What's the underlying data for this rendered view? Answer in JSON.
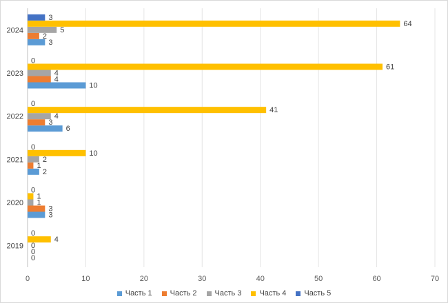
{
  "chart_data": {
    "type": "bar",
    "orientation": "horizontal",
    "categories": [
      "2019",
      "2020",
      "2021",
      "2022",
      "2023",
      "2024"
    ],
    "series": [
      {
        "name": "Часть 1",
        "color": "#5b9bd5",
        "values": [
          0,
          3,
          2,
          6,
          10,
          3
        ]
      },
      {
        "name": "Часть 2",
        "color": "#ed7d31",
        "values": [
          0,
          3,
          1,
          3,
          4,
          2
        ]
      },
      {
        "name": "Часть 3",
        "color": "#a5a5a5",
        "values": [
          0,
          1,
          2,
          4,
          4,
          5
        ]
      },
      {
        "name": "Часть 4",
        "color": "#ffc000",
        "values": [
          4,
          1,
          10,
          41,
          61,
          64
        ]
      },
      {
        "name": "Часть 5",
        "color": "#4472c4",
        "values": [
          0,
          0,
          0,
          0,
          0,
          3
        ]
      }
    ],
    "x_ticks": [
      "0",
      "10",
      "20",
      "30",
      "40",
      "50",
      "60",
      "70"
    ],
    "xlim": [
      0,
      70
    ],
    "grid": "vertical",
    "legend": "bottom",
    "data_labels": true
  }
}
